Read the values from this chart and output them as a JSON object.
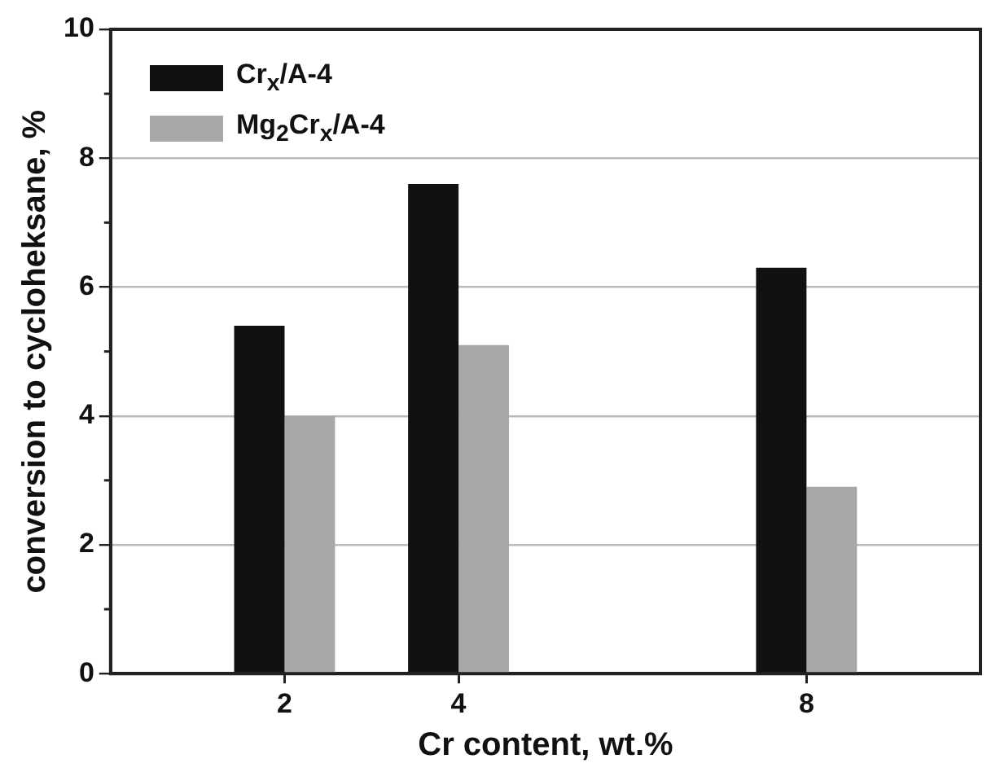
{
  "chart_data": {
    "type": "bar",
    "xlabel": "Cr content, wt.%",
    "ylabel": "conversion to cycloheksane, %",
    "x": [
      2,
      4,
      8
    ],
    "xlim": [
      0,
      10
    ],
    "xticks": [
      2,
      4,
      8
    ],
    "ylim": [
      0,
      10
    ],
    "yticks": [
      0,
      2,
      4,
      6,
      8,
      10
    ],
    "series": [
      {
        "name": "Cr$_{x}$/A-4",
        "color": "#111111",
        "values": [
          5.4,
          7.6,
          6.3
        ]
      },
      {
        "name": "Mg$_{2}$Cr$_{x}$/A-4",
        "color": "#a8a8a8",
        "values": [
          4.0,
          5.1,
          2.9
        ]
      }
    ],
    "grid": "y",
    "legend": "top left"
  }
}
